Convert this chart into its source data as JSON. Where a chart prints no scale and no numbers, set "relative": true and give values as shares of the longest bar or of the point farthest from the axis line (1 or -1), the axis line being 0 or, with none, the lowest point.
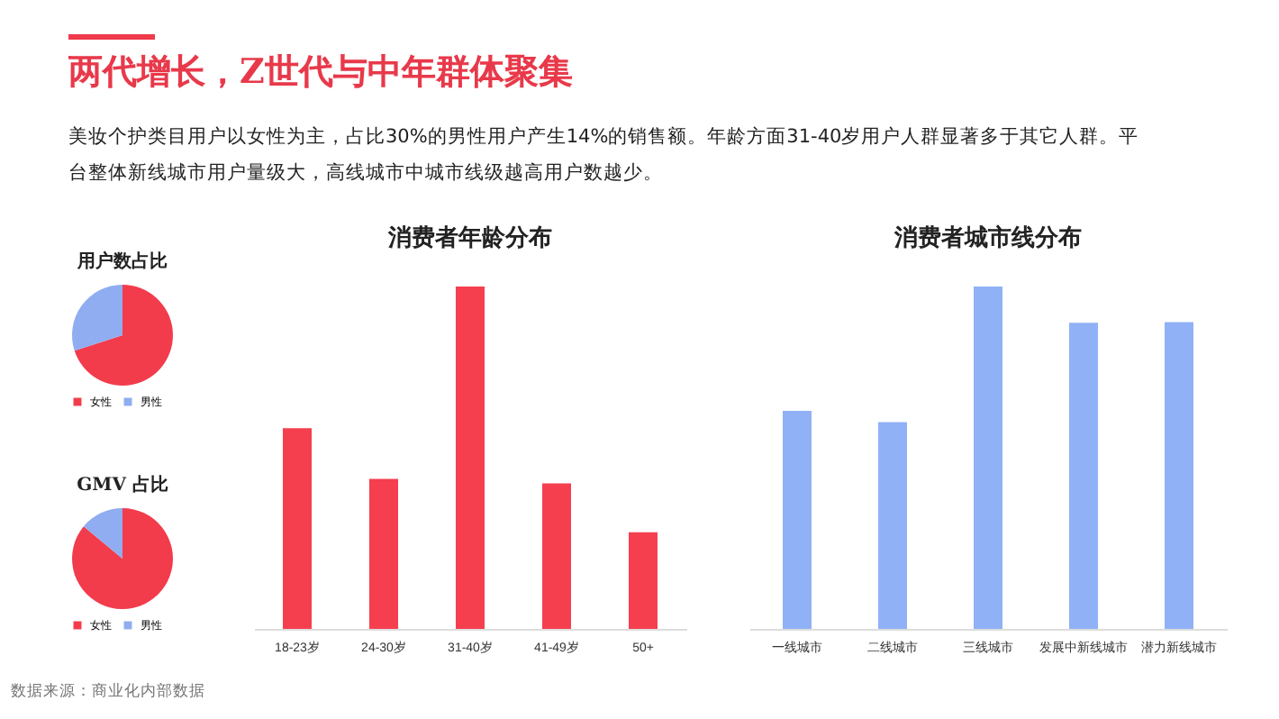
{
  "chart_data": [
    {
      "type": "other",
      "title": "两代增长，Z世代与中年群体聚集",
      "subtitle": "美妆个护类目用户以女性为主，占比30%的男性用户产生14%的销售额。年龄方面31-40岁用户人群显著多于其它人群。平台整体新线城市用户量级大，高线城市中城市线级越高用户数越少。",
      "annotations": [
        "数据来源：商业化内部数据"
      ]
    },
    {
      "type": "pie",
      "title": "用户数占比",
      "categories": [
        "女性",
        "男性"
      ],
      "values": [
        70,
        30
      ],
      "colors": [
        "#f23c4c",
        "#8fadf0"
      ],
      "legend": "bottom"
    },
    {
      "type": "pie",
      "title": "GMV 占比",
      "categories": [
        "女性",
        "男性"
      ],
      "values": [
        86,
        14
      ],
      "colors": [
        "#f23c4c",
        "#8fadf0"
      ],
      "legend": "bottom"
    },
    {
      "type": "bar",
      "title": "消费者年龄分布",
      "categories": [
        "18-23岁",
        "24-30岁",
        "31-40岁",
        "41-49岁",
        "50+"
      ],
      "values": [
        0.586,
        0.438,
        1,
        0.425,
        0.282
      ],
      "color": "#f53f4f",
      "relative": true
    },
    {
      "type": "bar",
      "title": "消费者城市线分布",
      "categories": [
        "一线城市",
        "二线城市",
        "三线城市",
        "发展中新线城市",
        "潜力新线城市"
      ],
      "values": [
        0.637,
        0.604,
        1,
        0.894,
        0.896
      ],
      "color": "#91b1f6",
      "relative": true
    }
  ]
}
